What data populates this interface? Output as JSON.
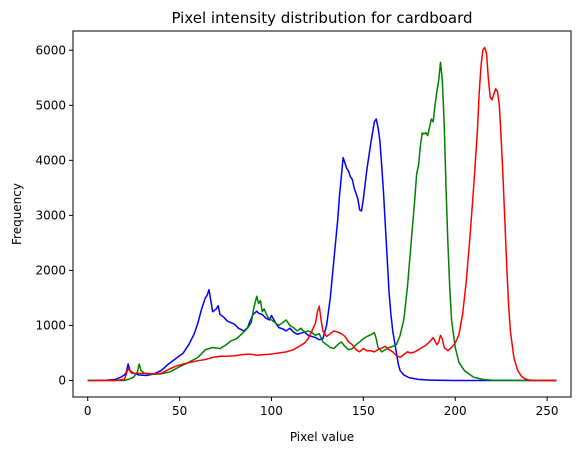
{
  "chart_data": {
    "type": "line",
    "title": "Pixel intensity distribution for cardboard",
    "xlabel": "Pixel value",
    "ylabel": "Frequency",
    "xlim": [
      -8,
      263
    ],
    "ylim": [
      -300,
      6350
    ],
    "x_ticks": [
      0,
      50,
      100,
      150,
      200,
      250
    ],
    "x_tick_labels": [
      "0",
      "50",
      "100",
      "150",
      "200",
      "250"
    ],
    "y_ticks": [
      0,
      1000,
      2000,
      3000,
      4000,
      5000,
      6000
    ],
    "y_tick_labels": [
      "0",
      "1000",
      "2000",
      "3000",
      "4000",
      "5000",
      "6000"
    ],
    "grid": false,
    "legend": "none",
    "series": [
      {
        "color": "#0000ff",
        "points": [
          [
            0,
            0
          ],
          [
            10,
            5
          ],
          [
            15,
            20
          ],
          [
            18,
            60
          ],
          [
            20,
            100
          ],
          [
            21,
            150
          ],
          [
            22,
            300
          ],
          [
            23,
            180
          ],
          [
            25,
            130
          ],
          [
            28,
            100
          ],
          [
            32,
            90
          ],
          [
            36,
            120
          ],
          [
            40,
            180
          ],
          [
            44,
            300
          ],
          [
            48,
            400
          ],
          [
            52,
            500
          ],
          [
            55,
            650
          ],
          [
            58,
            850
          ],
          [
            60,
            1050
          ],
          [
            62,
            1300
          ],
          [
            64,
            1500
          ],
          [
            65,
            1550
          ],
          [
            66,
            1650
          ],
          [
            67,
            1450
          ],
          [
            68,
            1250
          ],
          [
            70,
            1300
          ],
          [
            71,
            1360
          ],
          [
            72,
            1200
          ],
          [
            74,
            1150
          ],
          [
            76,
            1080
          ],
          [
            78,
            1050
          ],
          [
            80,
            1020
          ],
          [
            82,
            950
          ],
          [
            85,
            900
          ],
          [
            87,
            960
          ],
          [
            88,
            1050
          ],
          [
            90,
            1200
          ],
          [
            92,
            1260
          ],
          [
            93,
            1220
          ],
          [
            95,
            1200
          ],
          [
            97,
            1130
          ],
          [
            99,
            1100
          ],
          [
            100,
            1180
          ],
          [
            102,
            1060
          ],
          [
            104,
            960
          ],
          [
            106,
            940
          ],
          [
            108,
            900
          ],
          [
            110,
            950
          ],
          [
            112,
            880
          ],
          [
            114,
            840
          ],
          [
            116,
            860
          ],
          [
            118,
            880
          ],
          [
            120,
            820
          ],
          [
            122,
            800
          ],
          [
            124,
            780
          ],
          [
            126,
            740
          ],
          [
            128,
            760
          ],
          [
            130,
            1000
          ],
          [
            132,
            1500
          ],
          [
            134,
            2200
          ],
          [
            136,
            2900
          ],
          [
            137,
            3350
          ],
          [
            138,
            3700
          ],
          [
            139,
            4050
          ],
          [
            140,
            3950
          ],
          [
            141,
            3850
          ],
          [
            142,
            3800
          ],
          [
            143,
            3700
          ],
          [
            144,
            3650
          ],
          [
            145,
            3500
          ],
          [
            146,
            3400
          ],
          [
            147,
            3300
          ],
          [
            148,
            3100
          ],
          [
            149,
            3080
          ],
          [
            150,
            3300
          ],
          [
            152,
            3850
          ],
          [
            154,
            4300
          ],
          [
            156,
            4700
          ],
          [
            157,
            4750
          ],
          [
            158,
            4600
          ],
          [
            159,
            4350
          ],
          [
            160,
            3900
          ],
          [
            161,
            3400
          ],
          [
            162,
            2800
          ],
          [
            163,
            2200
          ],
          [
            164,
            1600
          ],
          [
            165,
            1200
          ],
          [
            166,
            900
          ],
          [
            167,
            700
          ],
          [
            168,
            500
          ],
          [
            169,
            300
          ],
          [
            170,
            180
          ],
          [
            172,
            100
          ],
          [
            175,
            50
          ],
          [
            180,
            20
          ],
          [
            185,
            10
          ],
          [
            190,
            5
          ],
          [
            200,
            0
          ],
          [
            255,
            0
          ]
        ]
      },
      {
        "color": "#008000",
        "points": [
          [
            0,
            0
          ],
          [
            15,
            0
          ],
          [
            20,
            0
          ],
          [
            23,
            30
          ],
          [
            25,
            60
          ],
          [
            27,
            150
          ],
          [
            28,
            300
          ],
          [
            29,
            180
          ],
          [
            31,
            130
          ],
          [
            35,
            110
          ],
          [
            40,
            120
          ],
          [
            45,
            160
          ],
          [
            50,
            250
          ],
          [
            55,
            330
          ],
          [
            60,
            420
          ],
          [
            64,
            560
          ],
          [
            68,
            600
          ],
          [
            72,
            580
          ],
          [
            75,
            640
          ],
          [
            78,
            720
          ],
          [
            81,
            760
          ],
          [
            84,
            850
          ],
          [
            87,
            950
          ],
          [
            89,
            1050
          ],
          [
            90,
            1250
          ],
          [
            91,
            1400
          ],
          [
            92,
            1530
          ],
          [
            93,
            1400
          ],
          [
            94,
            1450
          ],
          [
            95,
            1250
          ],
          [
            96,
            1300
          ],
          [
            98,
            1150
          ],
          [
            100,
            1100
          ],
          [
            102,
            1050
          ],
          [
            104,
            1000
          ],
          [
            106,
            1050
          ],
          [
            108,
            1100
          ],
          [
            110,
            1000
          ],
          [
            112,
            960
          ],
          [
            114,
            900
          ],
          [
            116,
            950
          ],
          [
            118,
            880
          ],
          [
            120,
            900
          ],
          [
            122,
            870
          ],
          [
            124,
            820
          ],
          [
            126,
            850
          ],
          [
            128,
            700
          ],
          [
            130,
            650
          ],
          [
            132,
            600
          ],
          [
            134,
            580
          ],
          [
            136,
            650
          ],
          [
            138,
            700
          ],
          [
            140,
            620
          ],
          [
            142,
            560
          ],
          [
            144,
            580
          ],
          [
            146,
            650
          ],
          [
            148,
            700
          ],
          [
            150,
            760
          ],
          [
            152,
            800
          ],
          [
            154,
            830
          ],
          [
            156,
            870
          ],
          [
            157,
            760
          ],
          [
            158,
            600
          ],
          [
            160,
            520
          ],
          [
            162,
            560
          ],
          [
            164,
            600
          ],
          [
            166,
            620
          ],
          [
            168,
            650
          ],
          [
            170,
            820
          ],
          [
            172,
            1100
          ],
          [
            174,
            1700
          ],
          [
            176,
            2500
          ],
          [
            178,
            3300
          ],
          [
            179,
            3750
          ],
          [
            180,
            3900
          ],
          [
            181,
            4250
          ],
          [
            182,
            4500
          ],
          [
            183,
            4480
          ],
          [
            184,
            4500
          ],
          [
            185,
            4450
          ],
          [
            186,
            4600
          ],
          [
            187,
            4750
          ],
          [
            188,
            4700
          ],
          [
            189,
            5000
          ],
          [
            190,
            5250
          ],
          [
            191,
            5450
          ],
          [
            192,
            5780
          ],
          [
            193,
            5450
          ],
          [
            194,
            4650
          ],
          [
            195,
            3500
          ],
          [
            196,
            2500
          ],
          [
            197,
            1700
          ],
          [
            198,
            1100
          ],
          [
            200,
            600
          ],
          [
            202,
            330
          ],
          [
            205,
            180
          ],
          [
            210,
            60
          ],
          [
            215,
            20
          ],
          [
            220,
            5
          ],
          [
            255,
            0
          ]
        ]
      },
      {
        "color": "#ff0000",
        "points": [
          [
            0,
            0
          ],
          [
            15,
            0
          ],
          [
            20,
            20
          ],
          [
            22,
            220
          ],
          [
            24,
            130
          ],
          [
            28,
            130
          ],
          [
            32,
            130
          ],
          [
            36,
            120
          ],
          [
            40,
            130
          ],
          [
            44,
            200
          ],
          [
            48,
            260
          ],
          [
            52,
            300
          ],
          [
            56,
            330
          ],
          [
            60,
            360
          ],
          [
            64,
            380
          ],
          [
            68,
            420
          ],
          [
            72,
            440
          ],
          [
            76,
            440
          ],
          [
            80,
            450
          ],
          [
            84,
            470
          ],
          [
            88,
            480
          ],
          [
            92,
            460
          ],
          [
            96,
            470
          ],
          [
            100,
            480
          ],
          [
            104,
            500
          ],
          [
            108,
            520
          ],
          [
            112,
            560
          ],
          [
            116,
            640
          ],
          [
            118,
            680
          ],
          [
            120,
            760
          ],
          [
            122,
            900
          ],
          [
            124,
            1050
          ],
          [
            125,
            1250
          ],
          [
            126,
            1350
          ],
          [
            127,
            1100
          ],
          [
            128,
            900
          ],
          [
            130,
            800
          ],
          [
            132,
            850
          ],
          [
            134,
            900
          ],
          [
            136,
            880
          ],
          [
            138,
            850
          ],
          [
            140,
            800
          ],
          [
            142,
            700
          ],
          [
            144,
            650
          ],
          [
            146,
            560
          ],
          [
            148,
            520
          ],
          [
            150,
            580
          ],
          [
            152,
            540
          ],
          [
            154,
            540
          ],
          [
            156,
            520
          ],
          [
            158,
            560
          ],
          [
            160,
            590
          ],
          [
            162,
            620
          ],
          [
            164,
            560
          ],
          [
            166,
            520
          ],
          [
            168,
            450
          ],
          [
            170,
            420
          ],
          [
            172,
            470
          ],
          [
            174,
            520
          ],
          [
            176,
            500
          ],
          [
            178,
            520
          ],
          [
            180,
            560
          ],
          [
            182,
            600
          ],
          [
            184,
            640
          ],
          [
            186,
            700
          ],
          [
            188,
            780
          ],
          [
            190,
            650
          ],
          [
            191,
            700
          ],
          [
            192,
            820
          ],
          [
            193,
            750
          ],
          [
            194,
            600
          ],
          [
            196,
            540
          ],
          [
            198,
            600
          ],
          [
            200,
            680
          ],
          [
            202,
            830
          ],
          [
            204,
            1200
          ],
          [
            206,
            1800
          ],
          [
            208,
            2600
          ],
          [
            210,
            3500
          ],
          [
            212,
            4500
          ],
          [
            213,
            5200
          ],
          [
            214,
            5700
          ],
          [
            215,
            6000
          ],
          [
            216,
            6050
          ],
          [
            217,
            5950
          ],
          [
            218,
            5500
          ],
          [
            219,
            5150
          ],
          [
            220,
            5100
          ],
          [
            221,
            5200
          ],
          [
            222,
            5300
          ],
          [
            223,
            5250
          ],
          [
            224,
            5000
          ],
          [
            225,
            4400
          ],
          [
            226,
            3700
          ],
          [
            227,
            2900
          ],
          [
            228,
            2100
          ],
          [
            229,
            1400
          ],
          [
            230,
            900
          ],
          [
            232,
            400
          ],
          [
            234,
            180
          ],
          [
            236,
            80
          ],
          [
            238,
            30
          ],
          [
            240,
            10
          ],
          [
            245,
            0
          ],
          [
            255,
            0
          ]
        ]
      }
    ]
  }
}
